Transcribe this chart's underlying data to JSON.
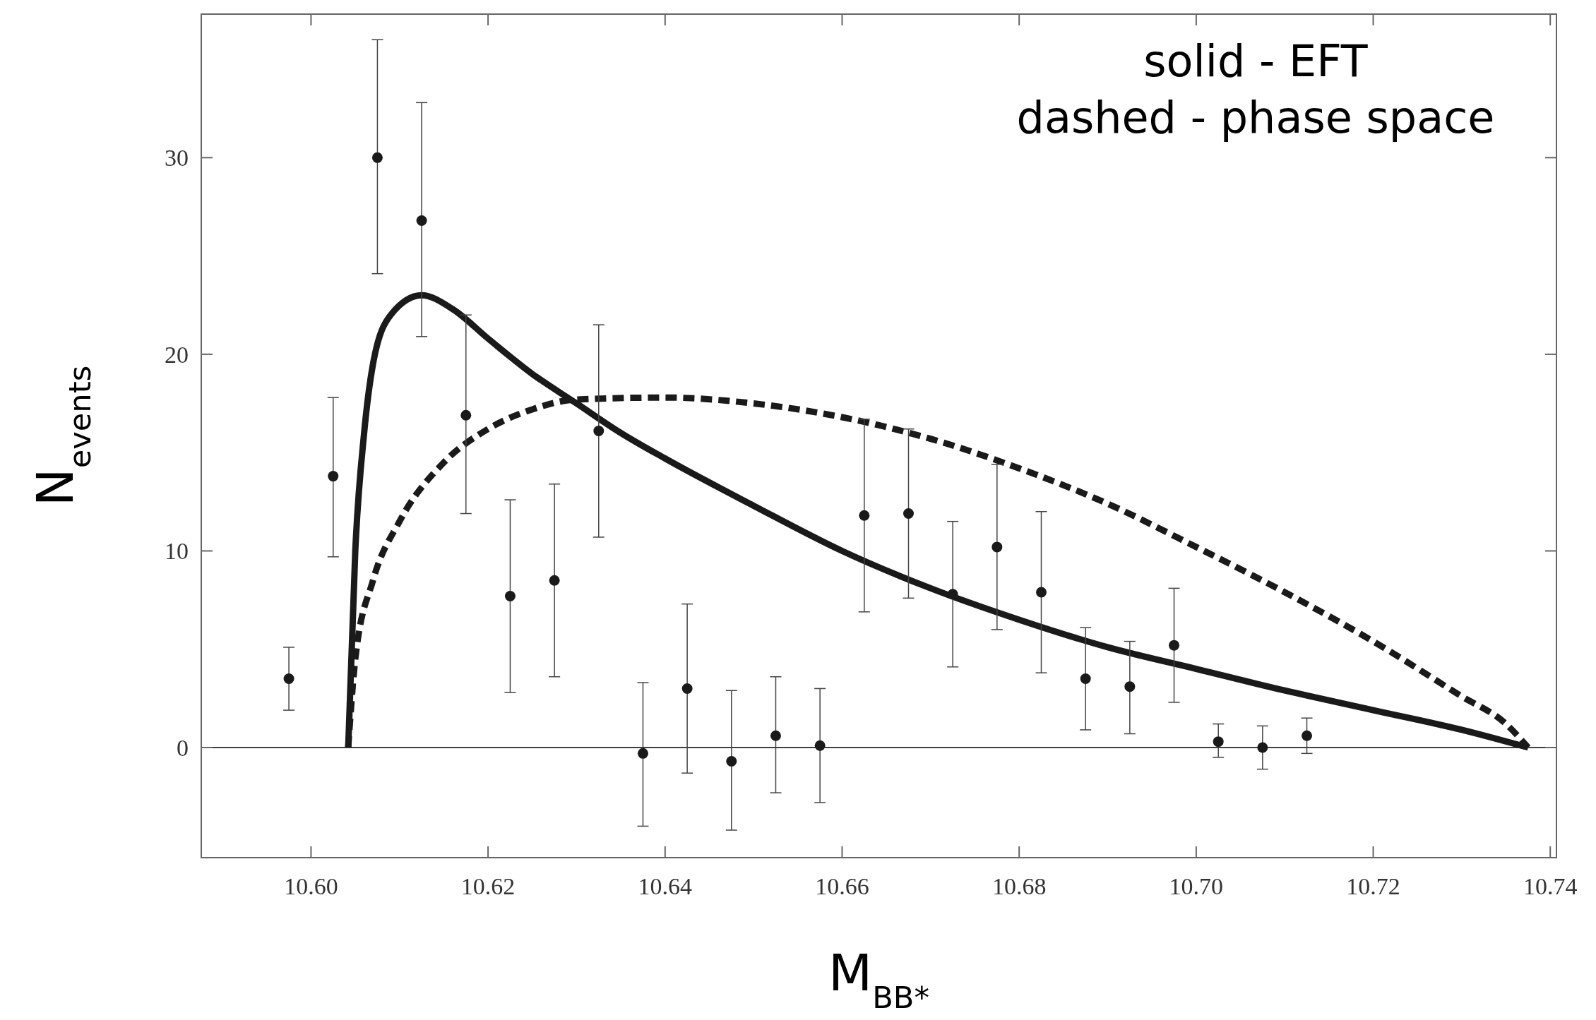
{
  "chart_data": {
    "type": "scatter",
    "xlabel": "M$_{BB*}$",
    "ylabel": "N$_{events}$",
    "annotations": [
      "solid - EFT",
      "dashed - phase space"
    ],
    "xlim": [
      10.5876,
      10.7407
    ],
    "ylim": [
      -5.6,
      37.3
    ],
    "xticks": [
      {
        "value": 10.6,
        "label": "10.60"
      },
      {
        "value": 10.62,
        "label": "10.62"
      },
      {
        "value": 10.64,
        "label": "10.64"
      },
      {
        "value": 10.66,
        "label": "10.66"
      },
      {
        "value": 10.68,
        "label": "10.68"
      },
      {
        "value": 10.7,
        "label": "10.70"
      },
      {
        "value": 10.72,
        "label": "10.72"
      },
      {
        "value": 10.74,
        "label": "10.74"
      }
    ],
    "yticks": [
      0,
      10,
      20,
      30
    ],
    "grid": false,
    "ref_lines": [
      {
        "axis": "y",
        "value": 0,
        "color": "#000000"
      }
    ],
    "series": [
      {
        "color": "#1a1a1a",
        "marker": "circle",
        "x": [
          10.5975,
          10.6025,
          10.6075,
          10.6125,
          10.6175,
          10.6225,
          10.6275,
          10.6325,
          10.6375,
          10.6425,
          10.6475,
          10.6525,
          10.6575,
          10.6625,
          10.6675,
          10.6725,
          10.6775,
          10.6825,
          10.6875,
          10.6925,
          10.6975,
          10.7025,
          10.7075,
          10.7125
        ],
        "values": [
          3.5,
          13.8,
          30.0,
          26.8,
          16.9,
          7.7,
          8.5,
          16.1,
          -0.3,
          3.0,
          -0.7,
          0.6,
          0.1,
          11.8,
          11.9,
          7.8,
          10.2,
          7.9,
          3.5,
          3.1,
          5.2,
          0.3,
          0.0,
          0.6
        ],
        "errors": [
          [
            1.9,
            5.1
          ],
          [
            9.7,
            17.8
          ],
          [
            24.1,
            36.0
          ],
          [
            20.9,
            32.8
          ],
          [
            11.9,
            22.0
          ],
          [
            2.8,
            12.6
          ],
          [
            3.6,
            13.4
          ],
          [
            10.7,
            21.5
          ],
          [
            -4.0,
            3.3
          ],
          [
            -1.3,
            7.3
          ],
          [
            -4.2,
            2.9
          ],
          [
            -2.3,
            3.6
          ],
          [
            -2.8,
            3.0
          ],
          [
            6.9,
            16.7
          ],
          [
            7.6,
            16.2
          ],
          [
            4.1,
            11.5
          ],
          [
            6.0,
            14.4
          ],
          [
            3.8,
            12.0
          ],
          [
            0.9,
            6.1
          ],
          [
            0.7,
            5.4
          ],
          [
            2.3,
            8.1
          ],
          [
            -0.5,
            1.2
          ],
          [
            -1.1,
            1.1
          ],
          [
            -0.3,
            1.5
          ]
        ]
      },
      {
        "type": "line",
        "color": "#1a1a1a",
        "line_style": "solid",
        "x": [
          10.6042,
          10.605,
          10.606,
          10.607,
          10.609,
          10.6125,
          10.616,
          10.62,
          10.625,
          10.63,
          10.635,
          10.64,
          10.65,
          10.66,
          10.67,
          10.68,
          10.69,
          10.7,
          10.71,
          10.72,
          10.73,
          10.7375
        ],
        "values": [
          0,
          10,
          16,
          19.5,
          22,
          23.0,
          22.3,
          20.8,
          19.0,
          17.5,
          16.0,
          14.7,
          12.3,
          10.0,
          8.1,
          6.5,
          5.1,
          4.0,
          2.9,
          1.9,
          0.9,
          0
        ]
      },
      {
        "type": "line",
        "color": "#1a1a1a",
        "line_style": "dashed",
        "x": [
          10.6042,
          10.605,
          10.607,
          10.61,
          10.615,
          10.62,
          10.625,
          10.63,
          10.64,
          10.65,
          10.66,
          10.67,
          10.68,
          10.69,
          10.7,
          10.71,
          10.72,
          10.73,
          10.735,
          10.7375
        ],
        "values": [
          0,
          4.5,
          8.5,
          11.5,
          14.5,
          16.2,
          17.2,
          17.7,
          17.8,
          17.5,
          16.8,
          15.7,
          14.2,
          12.4,
          10.2,
          7.9,
          5.4,
          2.6,
          1.2,
          0
        ]
      }
    ]
  }
}
